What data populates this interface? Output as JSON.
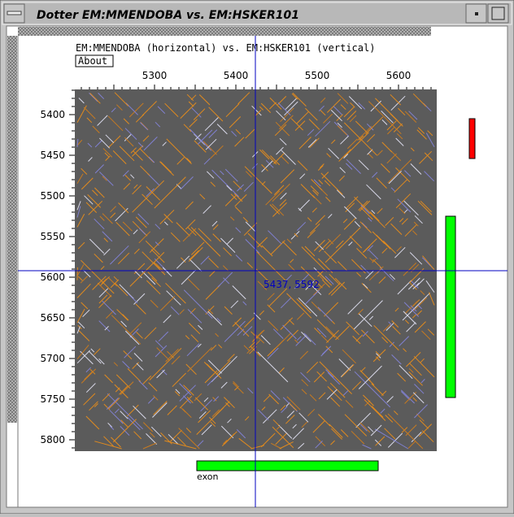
{
  "window": {
    "title": "Dotter EM:MMENDOBA vs. EM:HSKER101"
  },
  "header": {
    "text": "EM:MMENDOBA (horizontal) vs. EM:HSKER101 (vertical)",
    "button": "About"
  },
  "plot": {
    "x_ticks": [
      "5300",
      "5400",
      "5500",
      "5600"
    ],
    "y_ticks": [
      "5400",
      "5450",
      "5500",
      "5550",
      "5600",
      "5650",
      "5700",
      "5750",
      "5800"
    ],
    "crosshair_label": "5437, 5592"
  },
  "features": {
    "exon_label": "exon"
  }
}
